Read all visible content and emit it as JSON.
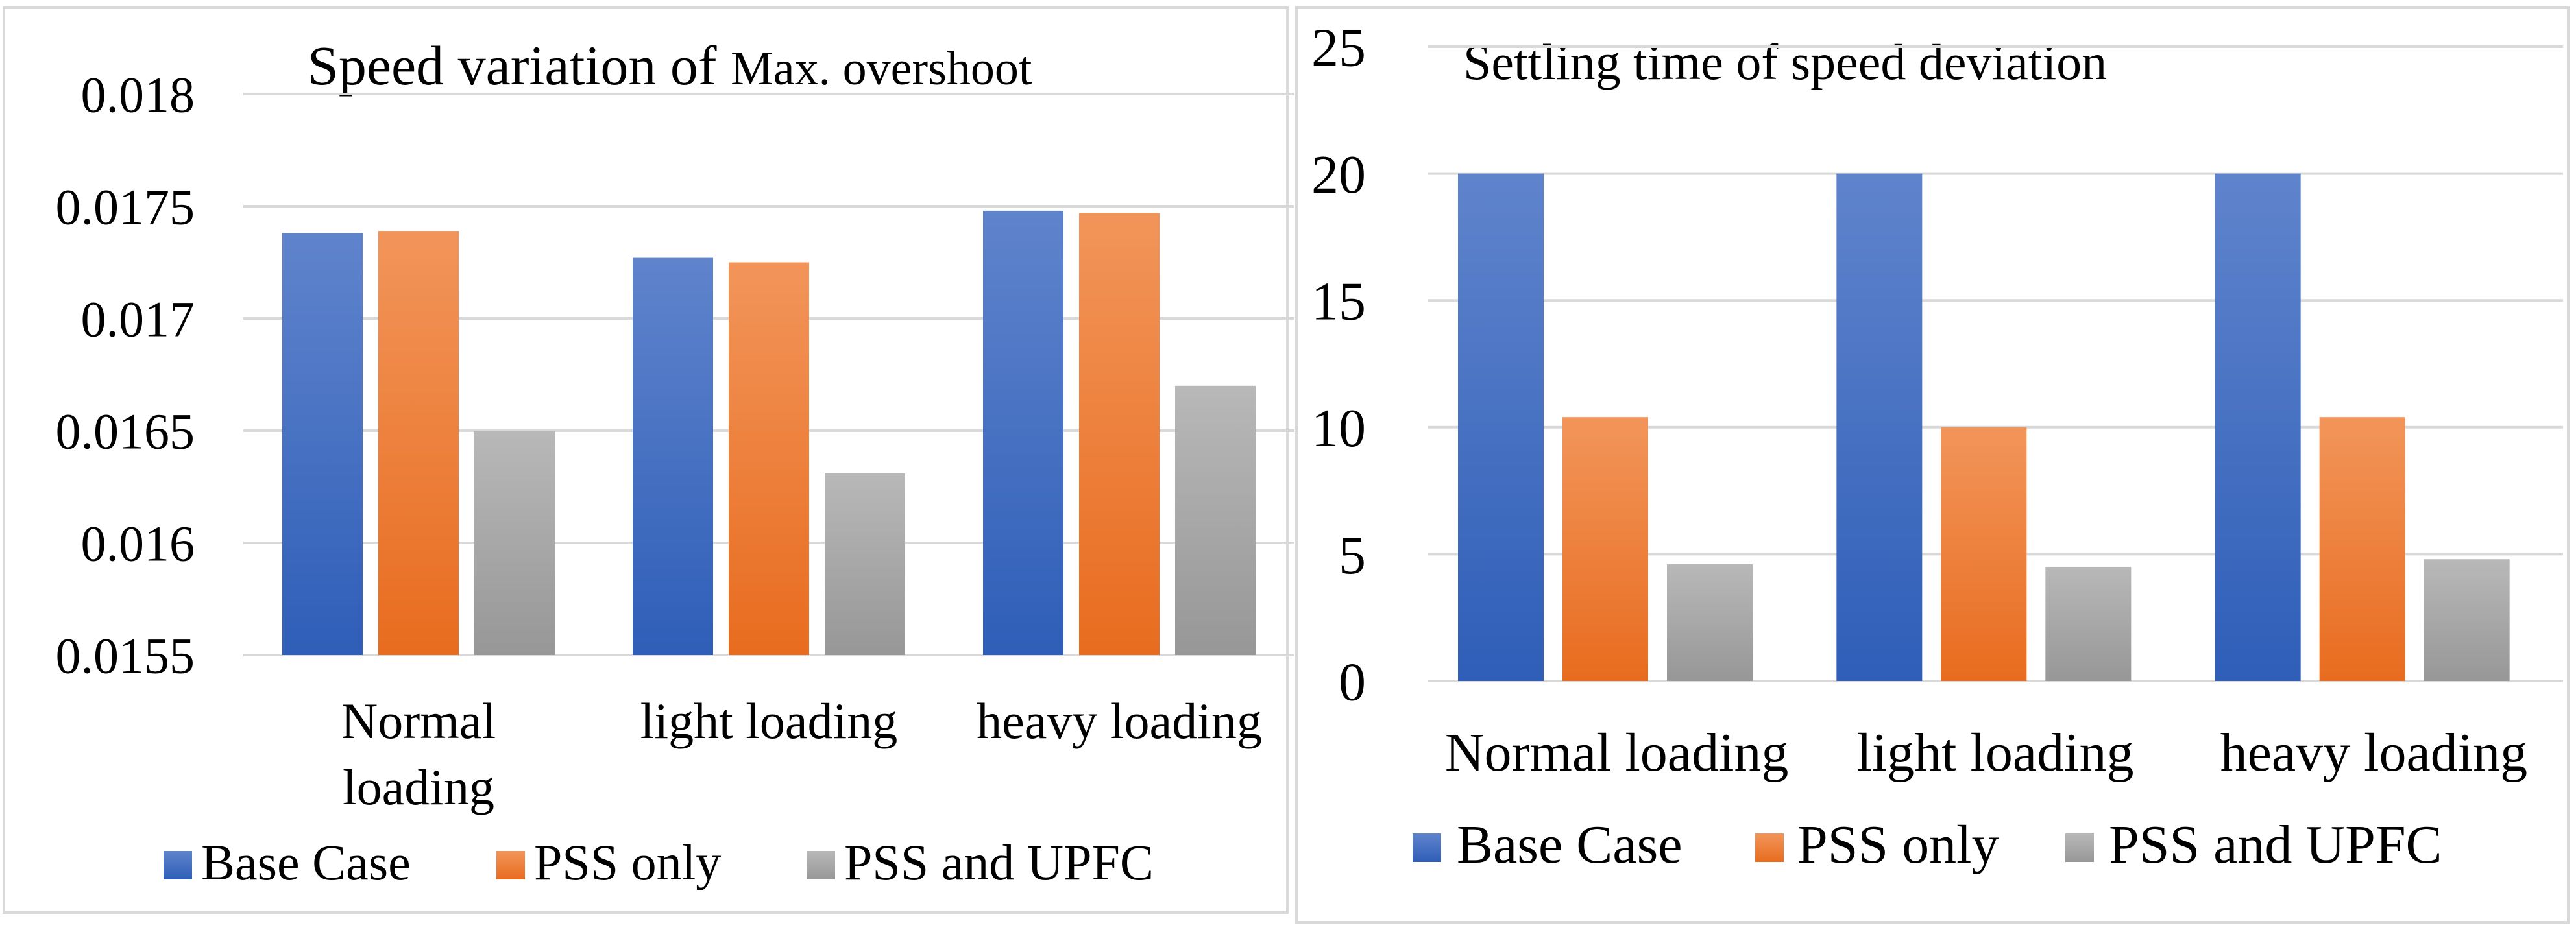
{
  "chart_data": [
    {
      "type": "bar",
      "title_main": "Speed variation of ",
      "title_tail": "Max. overshoot",
      "categories": [
        [
          "Normal",
          "loading"
        ],
        [
          "light loading"
        ],
        [
          "heavy loading"
        ]
      ],
      "series": [
        {
          "name": "Base Case",
          "values": [
            0.01738,
            0.01727,
            0.01748
          ]
        },
        {
          "name": "PSS only",
          "values": [
            0.01739,
            0.01725,
            0.01747
          ]
        },
        {
          "name": "PSS and UPFC",
          "values": [
            0.0165,
            0.01631,
            0.0167
          ]
        }
      ],
      "yticks": [
        "0.0155",
        "0.016",
        "0.0165",
        "0.017",
        "0.0175",
        "0.018"
      ],
      "ylim": [
        0.0155,
        0.018
      ],
      "xlabel": "",
      "ylabel": "",
      "legend": "bottom"
    },
    {
      "type": "bar",
      "title": "Settling time of speed deviation",
      "categories": [
        "Normal loading",
        "light loading",
        "heavy loading"
      ],
      "series": [
        {
          "name": "Base Case",
          "values": [
            20,
            20,
            20
          ]
        },
        {
          "name": "PSS only",
          "values": [
            10.4,
            10.0,
            10.4
          ]
        },
        {
          "name": "PSS and UPFC",
          "values": [
            4.6,
            4.5,
            4.8
          ]
        }
      ],
      "yticks": [
        "0",
        "5",
        "10",
        "15",
        "20",
        "25"
      ],
      "ylim": [
        0,
        25
      ],
      "xlabel": "",
      "ylabel": "",
      "legend": "bottom"
    }
  ],
  "colors": {
    "base_top": "#5f84cc",
    "base_bottom": "#2f5eb8",
    "pss_top": "#f2955a",
    "pss_bottom": "#e86c1f",
    "upfc_top": "#b8b8b8",
    "upfc_bottom": "#979797"
  }
}
